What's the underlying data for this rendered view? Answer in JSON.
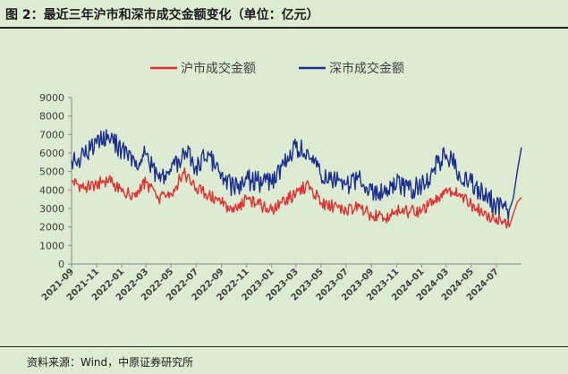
{
  "figure_title": "图 2：最近三年沪市和深市成交金额变化（单位：亿元）",
  "source": "资料来源：Wind，中原证券研究所",
  "colors": {
    "sh": "#e03030",
    "sz": "#1c2f8c",
    "axis": "#8a8a8a",
    "background": "#dcebd2"
  },
  "chart_data": {
    "type": "line",
    "title": "",
    "xlabel": "",
    "ylabel": "",
    "ylim": [
      0,
      9000
    ],
    "yticks": [
      0,
      1000,
      2000,
      3000,
      4000,
      5000,
      6000,
      7000,
      8000,
      9000
    ],
    "xlim": [
      "2021-09",
      "2024-08"
    ],
    "xticks": [
      "2021-09",
      "2021-11",
      "2022-01",
      "2022-03",
      "2022-05",
      "2022-07",
      "2022-09",
      "2022-11",
      "2023-01",
      "2023-03",
      "2023-05",
      "2023-07",
      "2023-09",
      "2023-11",
      "2024-01",
      "2024-03",
      "2024-05",
      "2024-07"
    ],
    "grid": false,
    "legend_position": "top",
    "series": [
      {
        "name": "沪市成交金额",
        "color": "#e03030",
        "points": [
          [
            "2021-09",
            4500
          ],
          [
            "2021-10",
            4100
          ],
          [
            "2021-11",
            4300
          ],
          [
            "2021-12",
            4600
          ],
          [
            "2022-01",
            3900
          ],
          [
            "2022-02",
            3800
          ],
          [
            "2022-03",
            4400
          ],
          [
            "2022-04",
            3500
          ],
          [
            "2022-05",
            3800
          ],
          [
            "2022-06",
            4900
          ],
          [
            "2022-07",
            4100
          ],
          [
            "2022-08",
            3700
          ],
          [
            "2022-09",
            3300
          ],
          [
            "2022-10",
            2800
          ],
          [
            "2022-11",
            3500
          ],
          [
            "2022-12",
            3200
          ],
          [
            "2023-01",
            2900
          ],
          [
            "2023-02",
            3400
          ],
          [
            "2023-03",
            3800
          ],
          [
            "2023-04",
            4300
          ],
          [
            "2023-05",
            3300
          ],
          [
            "2023-06",
            3100
          ],
          [
            "2023-07",
            2900
          ],
          [
            "2023-08",
            3100
          ],
          [
            "2023-09",
            2600
          ],
          [
            "2023-10",
            2500
          ],
          [
            "2023-11",
            2900
          ],
          [
            "2023-12",
            2800
          ],
          [
            "2024-01",
            2900
          ],
          [
            "2024-02",
            3400
          ],
          [
            "2024-03",
            4100
          ],
          [
            "2024-04",
            3800
          ],
          [
            "2024-05",
            3200
          ],
          [
            "2024-06",
            2700
          ],
          [
            "2024-07",
            2500
          ],
          [
            "2024-08",
            2000
          ],
          [
            "2024-08-31",
            3600
          ]
        ]
      },
      {
        "name": "深市成交金额",
        "color": "#1c2f8c",
        "points": [
          [
            "2021-09",
            5600
          ],
          [
            "2021-10",
            5900
          ],
          [
            "2021-11",
            6500
          ],
          [
            "2021-12",
            6800
          ],
          [
            "2022-01",
            6200
          ],
          [
            "2022-02",
            5600
          ],
          [
            "2022-03",
            5900
          ],
          [
            "2022-04",
            4600
          ],
          [
            "2022-05",
            5000
          ],
          [
            "2022-06",
            6100
          ],
          [
            "2022-07",
            5300
          ],
          [
            "2022-08",
            5900
          ],
          [
            "2022-09",
            4900
          ],
          [
            "2022-10",
            4100
          ],
          [
            "2022-11",
            4600
          ],
          [
            "2022-12",
            4400
          ],
          [
            "2023-01",
            4300
          ],
          [
            "2023-02",
            5300
          ],
          [
            "2023-03",
            6300
          ],
          [
            "2023-04",
            5900
          ],
          [
            "2023-05",
            4800
          ],
          [
            "2023-06",
            4700
          ],
          [
            "2023-07",
            4300
          ],
          [
            "2023-08",
            4700
          ],
          [
            "2023-09",
            4000
          ],
          [
            "2023-10",
            3900
          ],
          [
            "2023-11",
            4300
          ],
          [
            "2023-12",
            4000
          ],
          [
            "2024-01",
            4200
          ],
          [
            "2024-02",
            5200
          ],
          [
            "2024-03",
            5900
          ],
          [
            "2024-04",
            5000
          ],
          [
            "2024-05",
            4400
          ],
          [
            "2024-06",
            3700
          ],
          [
            "2024-07",
            3200
          ],
          [
            "2024-08",
            2900
          ],
          [
            "2024-08-31",
            6300
          ]
        ]
      }
    ]
  }
}
